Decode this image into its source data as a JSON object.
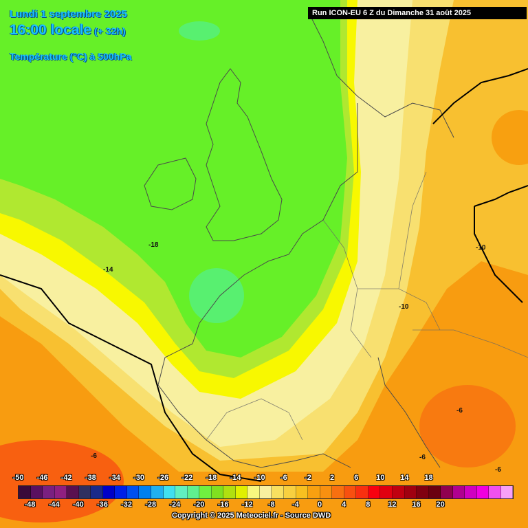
{
  "header": {
    "date": "Lundi 1 septembre 2025",
    "time": "16:00 locale",
    "lead": "(+ 32h)",
    "parameter": "Température (°C) à 500hPa"
  },
  "run_banner": "Run ICON-EU 6 Z du Dimanche 31 août 2025",
  "copyright": "Copyright © 2025 Meteociel.fr - Source DWD",
  "isotherm_labels": [
    "-18",
    "-14",
    "-10",
    "-10",
    "-6",
    "-6",
    "-6",
    "-6"
  ],
  "legend": {
    "top_labels": [
      "-50",
      "-46",
      "-42",
      "-38",
      "-34",
      "-30",
      "-26",
      "-22",
      "-18",
      "-14",
      "-10",
      "-6",
      "-2",
      "2",
      "6",
      "10",
      "14",
      "18"
    ],
    "bottom_labels": [
      "-48",
      "-44",
      "-40",
      "-36",
      "-32",
      "-28",
      "-24",
      "-20",
      "-16",
      "-12",
      "-8",
      "-4",
      "0",
      "4",
      "8",
      "12",
      "16",
      "20"
    ],
    "colors": [
      "#3a0a3a",
      "#5a1060",
      "#7a2080",
      "#902080",
      "#5a1050",
      "#303060",
      "#1a2a8a",
      "#0000c8",
      "#0020e8",
      "#0050f0",
      "#0080f0",
      "#20b0f0",
      "#40e0f0",
      "#60f0c0",
      "#60f090",
      "#70f040",
      "#80e020",
      "#b0e010",
      "#e0f000",
      "#f8f880",
      "#f8f0a0",
      "#f8e060",
      "#f8d040",
      "#f8c020",
      "#f8a010",
      "#f89010",
      "#f87010",
      "#f85010",
      "#f83010",
      "#f80010",
      "#e00010",
      "#c00010",
      "#a00010",
      "#800010",
      "#6a0010",
      "#900050",
      "#b00090",
      "#d000c0",
      "#f000e0",
      "#f050f0",
      "#f8a0f8"
    ]
  }
}
